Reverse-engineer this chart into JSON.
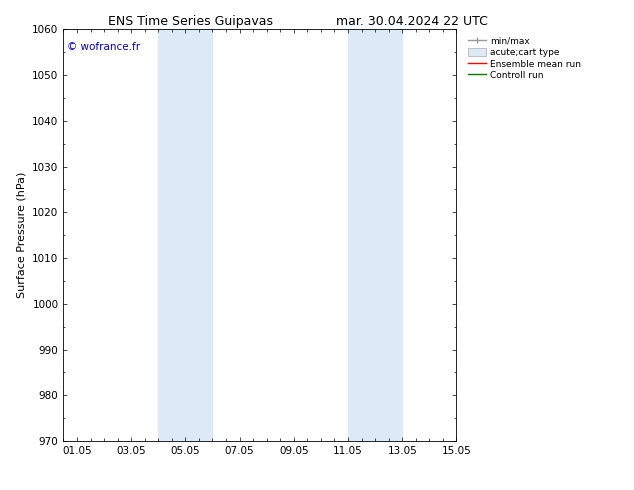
{
  "title_left": "ENS Time Series Guipavas",
  "title_right": "mar. 30.04.2024 22 UTC",
  "ylabel": "Surface Pressure (hPa)",
  "ylim": [
    970,
    1060
  ],
  "yticks": [
    970,
    980,
    990,
    1000,
    1010,
    1020,
    1030,
    1040,
    1050,
    1060
  ],
  "xlim_start": 0.0,
  "xlim_end": 14.5,
  "xtick_labels": [
    "01.05",
    "03.05",
    "05.05",
    "07.05",
    "09.05",
    "11.05",
    "13.05",
    "15.05"
  ],
  "xtick_positions": [
    0.5,
    2.5,
    4.5,
    6.5,
    8.5,
    10.5,
    12.5,
    14.5
  ],
  "shaded_bands": [
    {
      "xmin": 3.5,
      "xmax": 4.5
    },
    {
      "xmin": 4.5,
      "xmax": 5.5
    },
    {
      "xmin": 10.5,
      "xmax": 11.5
    },
    {
      "xmin": 11.5,
      "xmax": 12.5
    }
  ],
  "shade_color": "#dce9f7",
  "watermark_text": "© wofrance.fr",
  "watermark_color": "#0000cc",
  "legend_entries": [
    "min/max",
    "acute;cart type",
    "Ensemble mean run",
    "Controll run"
  ],
  "bg_color": "#ffffff",
  "title_fontsize": 9,
  "label_fontsize": 8,
  "tick_fontsize": 7.5
}
